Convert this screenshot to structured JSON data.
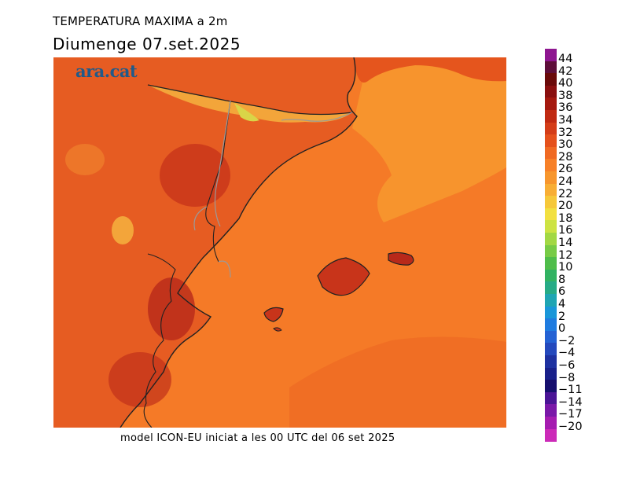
{
  "header": {
    "title": "TEMPERATURA MAXIMA a 2m",
    "date": "Diumenge  07.set.2025"
  },
  "map": {
    "watermark": "ara.cat",
    "footer": "model ICON-EU iniciat a les 00 UTC del 06 set 2025",
    "sea_color": "#f57a27",
    "land_base_color": "#e65c22"
  },
  "legend": {
    "unit_note": "",
    "entries": [
      {
        "label": "44",
        "color": "#8e1690"
      },
      {
        "label": "42",
        "color": "#5e0e3a"
      },
      {
        "label": "40",
        "color": "#6a0a0a"
      },
      {
        "label": "38",
        "color": "#8a0f0f"
      },
      {
        "label": "36",
        "color": "#a5190f"
      },
      {
        "label": "34",
        "color": "#c02a12"
      },
      {
        "label": "32",
        "color": "#d43d18"
      },
      {
        "label": "30",
        "color": "#e5511c"
      },
      {
        "label": "28",
        "color": "#f06a23"
      },
      {
        "label": "26",
        "color": "#f78028"
      },
      {
        "label": "24",
        "color": "#f7962d"
      },
      {
        "label": "22",
        "color": "#f8ae35"
      },
      {
        "label": "20",
        "color": "#f6c83a"
      },
      {
        "label": "18",
        "color": "#f2e040"
      },
      {
        "label": "16",
        "color": "#cde343"
      },
      {
        "label": "14",
        "color": "#a2d844"
      },
      {
        "label": "12",
        "color": "#77cb46"
      },
      {
        "label": "10",
        "color": "#4fbd4a"
      },
      {
        "label": "8",
        "color": "#31b262"
      },
      {
        "label": "6",
        "color": "#26ab86"
      },
      {
        "label": "4",
        "color": "#1fa5b3"
      },
      {
        "label": "2",
        "color": "#1a97d9"
      },
      {
        "label": "0",
        "color": "#1f7ce0"
      },
      {
        "label": "−2",
        "color": "#2462d4"
      },
      {
        "label": "−4",
        "color": "#2449bd"
      },
      {
        "label": "−6",
        "color": "#1e31a0"
      },
      {
        "label": "−8",
        "color": "#19208a"
      },
      {
        "label": "−11",
        "color": "#160f6e"
      },
      {
        "label": "−14",
        "color": "#4a1496"
      },
      {
        "label": "−17",
        "color": "#7a18a8"
      },
      {
        "label": "−20",
        "color": "#a51cb0"
      },
      {
        "label": "",
        "color": "#cc2ab8"
      }
    ]
  }
}
